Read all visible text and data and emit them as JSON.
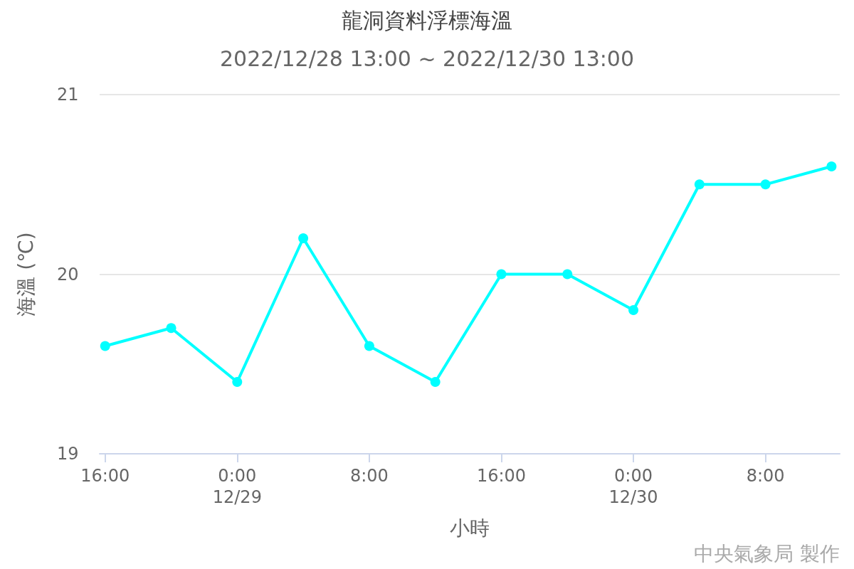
{
  "chart_data": {
    "type": "line",
    "title": "龍洞資料浮標海溫",
    "subtitle": "2022/12/28 13:00 ~ 2022/12/30 13:00",
    "xlabel": "小時",
    "ylabel": "海溫 (℃)",
    "x": [
      "2022-12-28T16:00",
      "2022-12-28T20:00",
      "2022-12-29T00:00",
      "2022-12-29T04:00",
      "2022-12-29T08:00",
      "2022-12-29T12:00",
      "2022-12-29T16:00",
      "2022-12-29T20:00",
      "2022-12-30T00:00",
      "2022-12-30T04:00",
      "2022-12-30T08:00",
      "2022-12-30T12:00"
    ],
    "series": [
      {
        "color": "#00ffff",
        "values": [
          19.6,
          19.7,
          19.4,
          20.2,
          19.6,
          19.4,
          20.0,
          20.0,
          19.8,
          20.5,
          20.5,
          20.6
        ]
      }
    ],
    "xlim": [
      "2022-12-28T15:40",
      "2022-12-30T12:30"
    ],
    "xticks": [
      {
        "value": "2022-12-28T16:00",
        "label": "16:00"
      },
      {
        "value": "2022-12-29T00:00",
        "label": "0:00\n12/29"
      },
      {
        "value": "2022-12-29T08:00",
        "label": "8:00"
      },
      {
        "value": "2022-12-29T16:00",
        "label": "16:00"
      },
      {
        "value": "2022-12-30T00:00",
        "label": "0:00\n12/30"
      },
      {
        "value": "2022-12-30T08:00",
        "label": "8:00"
      }
    ],
    "ylim": [
      19,
      21
    ],
    "yticks": [
      19,
      20,
      21
    ],
    "grid": "y",
    "marker": "circle",
    "line_style": "solid",
    "annotations": [
      "中央氣象局 製作"
    ]
  }
}
